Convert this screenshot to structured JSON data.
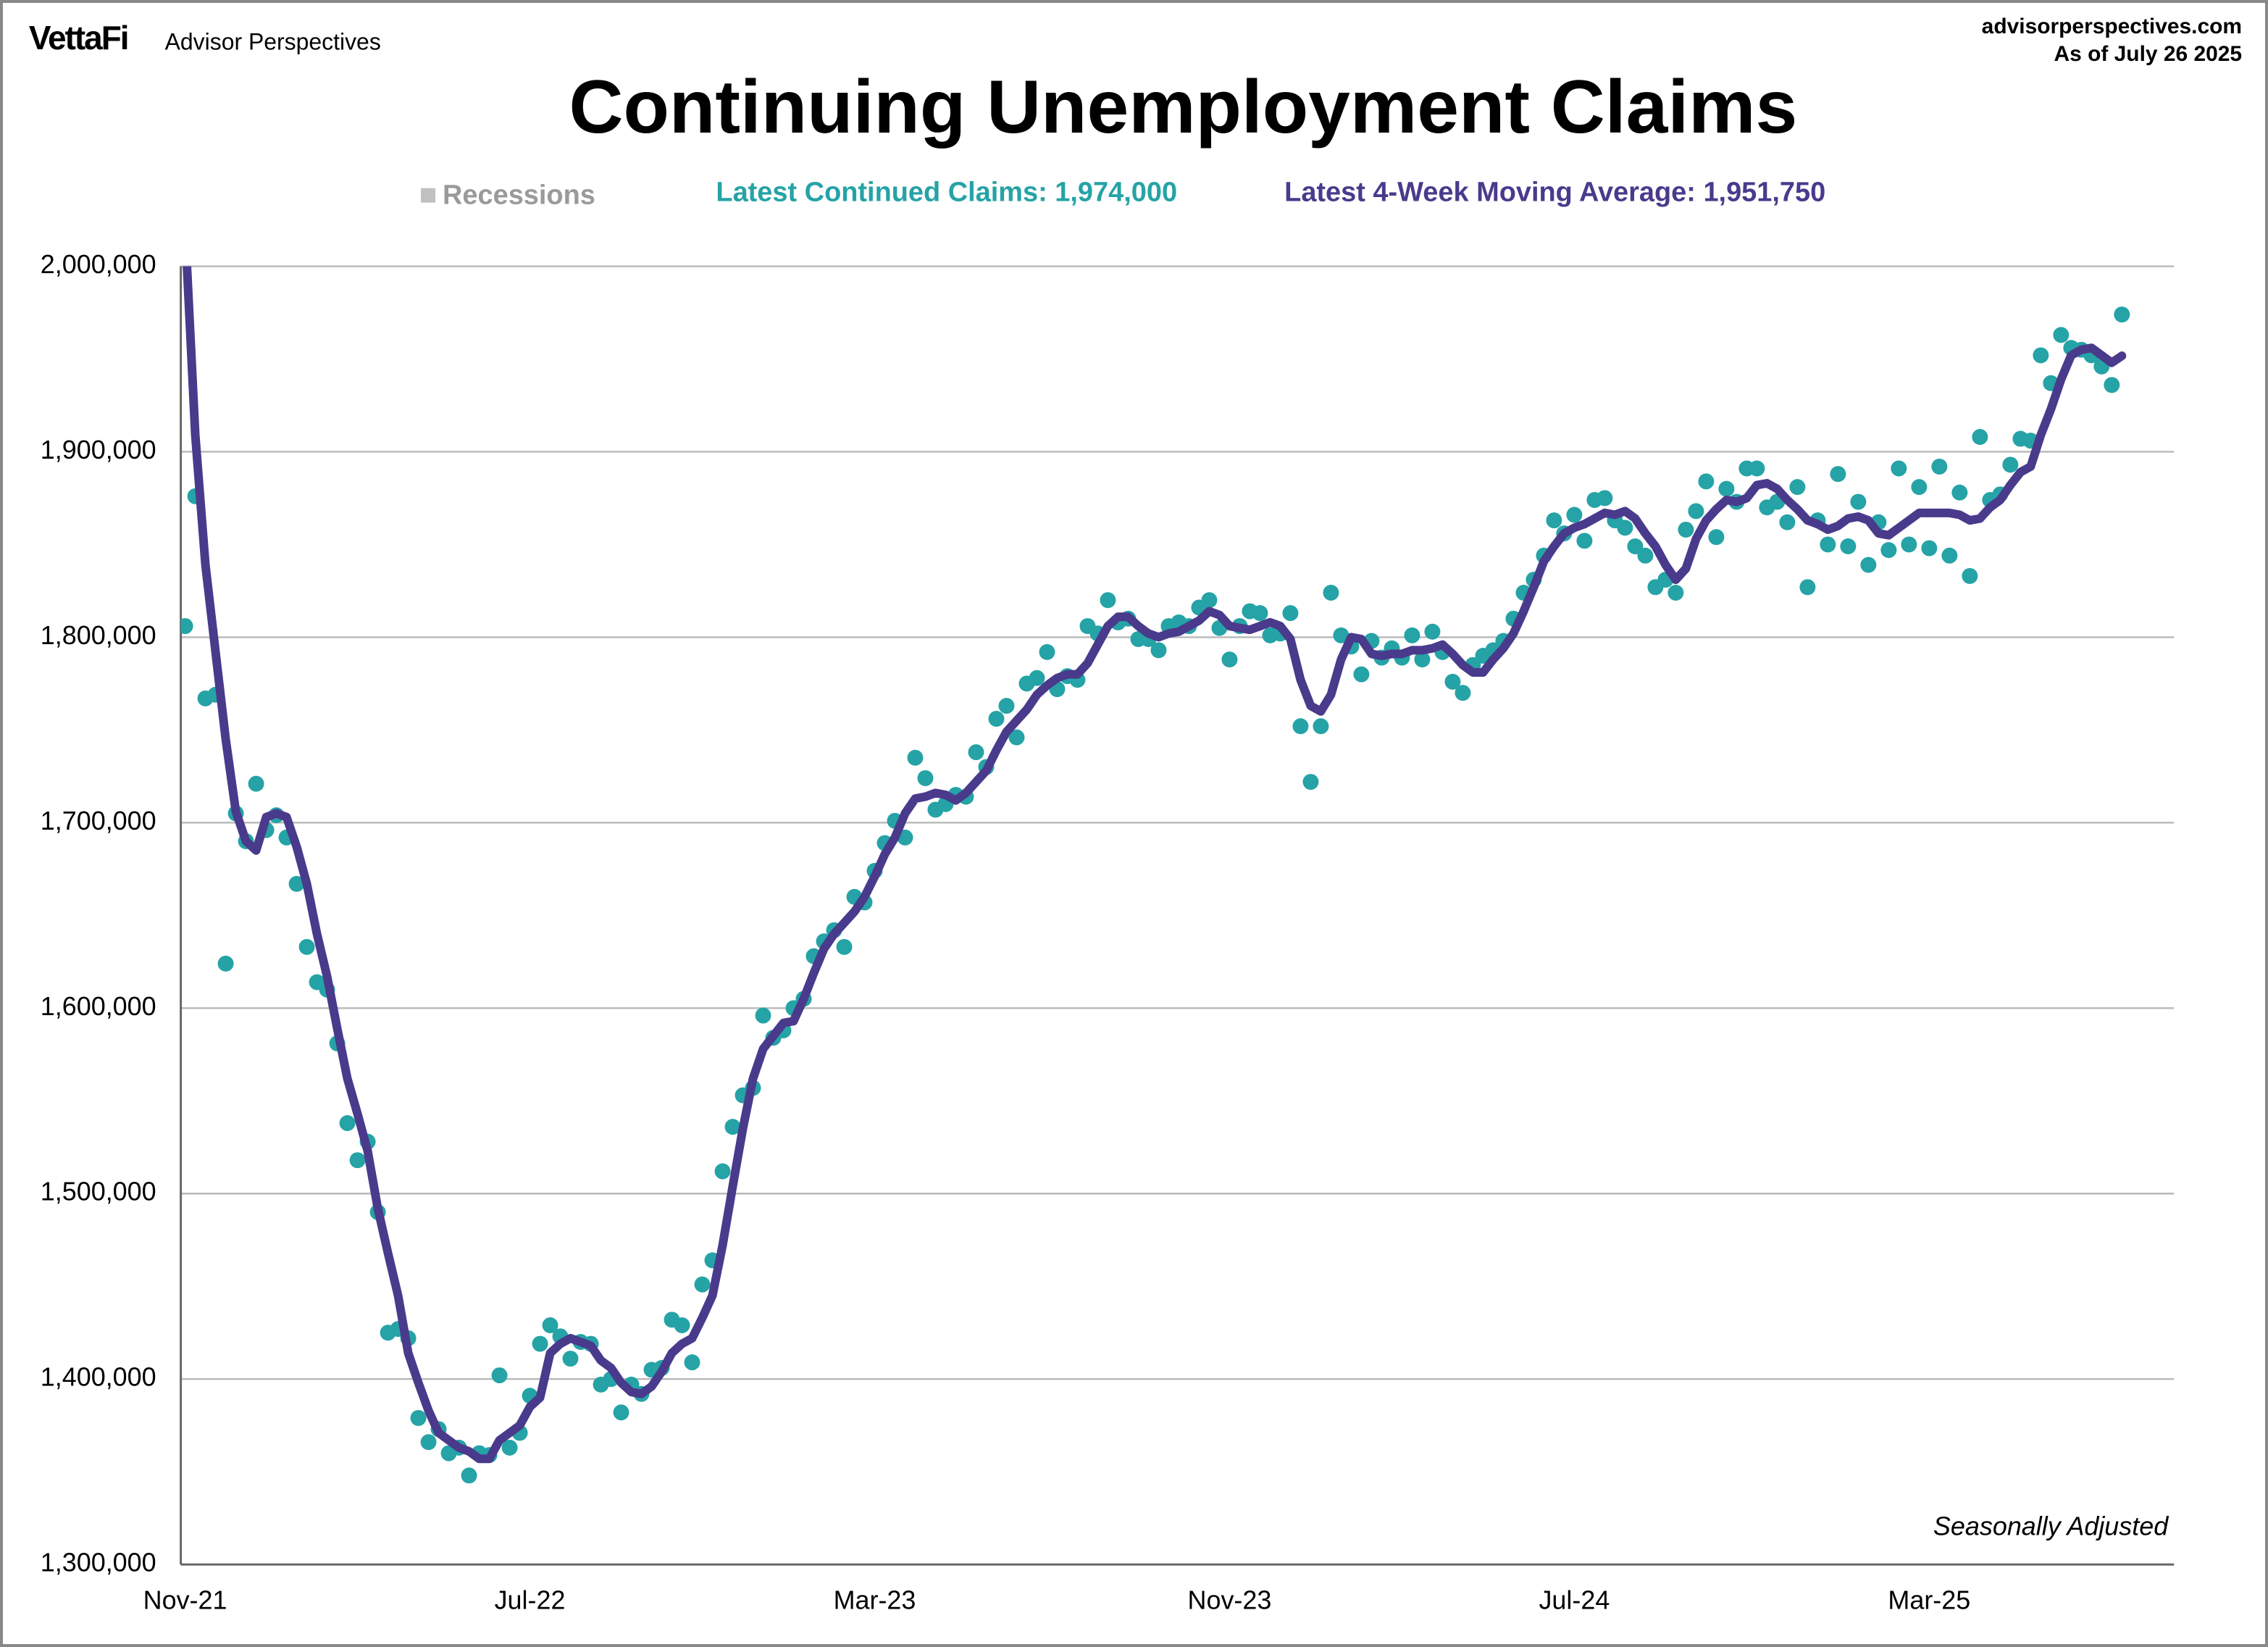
{
  "brand": "VettaFi",
  "brand_subtitle": "Advisor Perspectives",
  "source": "advisorperspectives.com",
  "as_of": "As of July 26 2025",
  "chart_data": {
    "type": "line",
    "title": "Continuing Unemployment Claims",
    "annotation": "Seasonally Adjusted",
    "recessions_label": "Recessions",
    "categories": [
      "Nov-21",
      null,
      null,
      null,
      null,
      null,
      null,
      null,
      null,
      null,
      null,
      null,
      null,
      null,
      null,
      null,
      null,
      null,
      null,
      null,
      null,
      null,
      null,
      null,
      null,
      null,
      null,
      null,
      null,
      null,
      null,
      null,
      null,
      null,
      "Jul-22",
      null,
      null,
      null,
      null,
      null,
      null,
      null,
      null,
      null,
      null,
      null,
      null,
      null,
      null,
      null,
      null,
      null,
      null,
      null,
      null,
      null,
      null,
      null,
      null,
      null,
      null,
      null,
      null,
      null,
      null,
      null,
      null,
      null,
      "Mar-23",
      null,
      null,
      null,
      null,
      null,
      null,
      null,
      null,
      null,
      null,
      null,
      null,
      null,
      null,
      null,
      null,
      null,
      null,
      null,
      null,
      null,
      null,
      null,
      null,
      null,
      null,
      null,
      null,
      null,
      null,
      null,
      null,
      null,
      null,
      "Nov-23",
      null,
      null,
      null,
      null,
      null,
      null,
      null,
      null,
      null,
      null,
      null,
      null,
      null,
      null,
      null,
      null,
      null,
      null,
      null,
      null,
      null,
      null,
      null,
      null,
      null,
      null,
      null,
      null,
      null,
      null,
      null,
      null,
      null,
      "Jul-24",
      null,
      null,
      null,
      null,
      null,
      null,
      null,
      null,
      null,
      null,
      null,
      null,
      null,
      null,
      null,
      null,
      null,
      null,
      null,
      null,
      null,
      null,
      null,
      null,
      null,
      null,
      null,
      null,
      null,
      null,
      null,
      null,
      null,
      null,
      "Mar-25",
      null,
      null,
      null,
      null,
      null,
      null,
      null,
      null,
      null,
      null,
      null,
      null,
      null,
      null,
      null,
      null,
      null,
      null,
      null
    ],
    "series": [
      {
        "name": "Latest Continued Claims: 1,974,000",
        "color": "#25a3a6",
        "style": "dots",
        "values": [
          1806000,
          1876000,
          1767000,
          1769000,
          1624000,
          1705000,
          1690000,
          1721000,
          1696000,
          1704000,
          1692000,
          1667000,
          1633000,
          1614000,
          1610000,
          1581000,
          1538000,
          1518000,
          1528000,
          1490000,
          1425000,
          1427000,
          1422000,
          1379000,
          1366000,
          1373000,
          1360000,
          1363000,
          1348000,
          1360000,
          1359000,
          1402000,
          1363000,
          1371000,
          1391000,
          1419000,
          1429000,
          1423000,
          1411000,
          1420000,
          1419000,
          1397000,
          1400000,
          1382000,
          1397000,
          1392000,
          1405000,
          1406000,
          1432000,
          1429000,
          1409000,
          1451000,
          1464000,
          1512000,
          1536000,
          1553000,
          1557000,
          1596000,
          1584000,
          1588000,
          1600000,
          1605000,
          1628000,
          1636000,
          1642000,
          1633000,
          1660000,
          1657000,
          1674000,
          1689000,
          1701000,
          1692000,
          1735000,
          1724000,
          1707000,
          1710000,
          1715000,
          1714000,
          1738000,
          1730000,
          1756000,
          1763000,
          1746000,
          1775000,
          1778000,
          1792000,
          1772000,
          1779000,
          1777000,
          1806000,
          1802000,
          1820000,
          1808000,
          1810000,
          1799000,
          1799000,
          1793000,
          1806000,
          1808000,
          1806000,
          1816000,
          1820000,
          1805000,
          1788000,
          1806000,
          1814000,
          1813000,
          1801000,
          1802000,
          1813000,
          1752000,
          1722000,
          1752000,
          1824000,
          1801000,
          1795000,
          1780000,
          1798000,
          1789000,
          1794000,
          1789000,
          1801000,
          1788000,
          1803000,
          1792000,
          1776000,
          1770000,
          1785000,
          1790000,
          1793000,
          1798000,
          1810000,
          1824000,
          1831000,
          1844000,
          1863000,
          1856000,
          1866000,
          1852000,
          1874000,
          1875000,
          1863000,
          1859000,
          1849000,
          1844000,
          1827000,
          1831000,
          1824000,
          1858000,
          1868000,
          1884000,
          1854000,
          1880000,
          1873000,
          1891000,
          1891000,
          1870000,
          1873000,
          1862000,
          1881000,
          1827000,
          1863000,
          1850000,
          1888000,
          1849000,
          1873000,
          1839000,
          1862000,
          1847000,
          1891000,
          1850000,
          1881000,
          1848000,
          1892000,
          1844000,
          1878000,
          1833000,
          1908000,
          1874000,
          1877000,
          1893000,
          1907000,
          1906000,
          1952000,
          1937000,
          1963000,
          1956000,
          1955000,
          1952000,
          1946000,
          1936000,
          1974000
        ]
      },
      {
        "name": "Latest 4-Week Moving Average: 1,951,750",
        "color": "#4a3a8c",
        "style": "line",
        "values": [
          2020000,
          1909000,
          1839000,
          1792000,
          1745000,
          1706000,
          1690000,
          1685000,
          1703000,
          1705000,
          1703000,
          1687000,
          1667000,
          1640000,
          1617000,
          1589000,
          1562000,
          1543000,
          1523000,
          1492000,
          1468000,
          1445000,
          1414000,
          1398000,
          1383000,
          1371000,
          1367000,
          1363000,
          1361000,
          1357000,
          1357000,
          1367000,
          1371000,
          1375000,
          1385000,
          1390000,
          1414000,
          1419000,
          1422000,
          1420000,
          1418000,
          1410000,
          1406000,
          1398000,
          1393000,
          1392000,
          1396000,
          1404000,
          1414000,
          1419000,
          1422000,
          1433000,
          1445000,
          1472000,
          1504000,
          1535000,
          1562000,
          1578000,
          1585000,
          1592000,
          1593000,
          1605000,
          1619000,
          1632000,
          1640000,
          1646000,
          1652000,
          1660000,
          1671000,
          1683000,
          1692000,
          1705000,
          1713000,
          1714000,
          1716000,
          1715000,
          1712000,
          1716000,
          1722000,
          1728000,
          1739000,
          1749000,
          1755000,
          1761000,
          1769000,
          1774000,
          1778000,
          1780000,
          1780000,
          1786000,
          1796000,
          1806000,
          1811000,
          1811000,
          1806000,
          1802000,
          1800000,
          1802000,
          1803000,
          1806000,
          1809000,
          1814000,
          1812000,
          1806000,
          1805000,
          1804000,
          1806000,
          1808000,
          1806000,
          1799000,
          1777000,
          1763000,
          1760000,
          1769000,
          1788000,
          1800000,
          1799000,
          1791000,
          1790000,
          1791000,
          1791000,
          1793000,
          1793000,
          1794000,
          1796000,
          1791000,
          1785000,
          1781000,
          1781000,
          1788000,
          1794000,
          1802000,
          1814000,
          1827000,
          1841000,
          1849000,
          1856000,
          1859000,
          1861000,
          1864000,
          1867000,
          1866000,
          1868000,
          1864000,
          1856000,
          1849000,
          1839000,
          1831000,
          1837000,
          1853000,
          1863000,
          1869000,
          1874000,
          1873000,
          1875000,
          1882000,
          1883000,
          1880000,
          1874000,
          1869000,
          1863000,
          1861000,
          1858000,
          1860000,
          1864000,
          1865000,
          1863000,
          1856000,
          1855000,
          1859000,
          1863000,
          1867000,
          1867000,
          1867000,
          1867000,
          1866000,
          1863000,
          1864000,
          1870000,
          1874000,
          1882000,
          1889000,
          1892000,
          1909000,
          1923000,
          1939000,
          1952000,
          1955000,
          1956000,
          1952000,
          1948000,
          1951750
        ]
      }
    ],
    "ylim": [
      1300000,
      2000000
    ],
    "yticks": [
      {
        "value": 1300000,
        "label": "1,300,000"
      },
      {
        "value": 1400000,
        "label": "1,400,000"
      },
      {
        "value": 1500000,
        "label": "1,500,000"
      },
      {
        "value": 1600000,
        "label": "1,600,000"
      },
      {
        "value": 1700000,
        "label": "1,700,000"
      },
      {
        "value": 1800000,
        "label": "1,800,000"
      },
      {
        "value": 1900000,
        "label": "1,900,000"
      },
      {
        "value": 2000000,
        "label": "2,000,000"
      }
    ],
    "grid": true
  }
}
